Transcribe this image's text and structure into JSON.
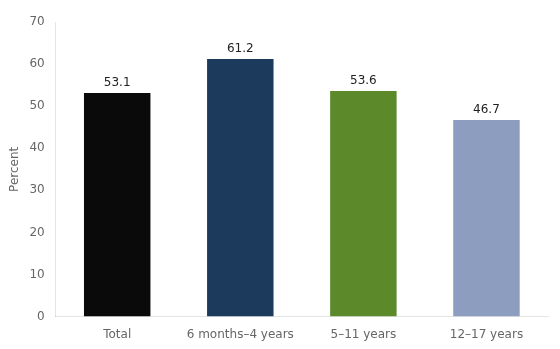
{
  "chart_data": {
    "type": "bar",
    "categories": [
      "Total",
      "6 months–4 years",
      "5–11 years",
      "12–17 years"
    ],
    "values": [
      53.1,
      61.2,
      53.6,
      46.7
    ],
    "colors": [
      "#0a0a0a",
      "#1b3a5c",
      "#5c8a2a",
      "#8c9dbf"
    ],
    "ylabel": "Percent",
    "ylim": [
      0,
      70
    ],
    "yticks": [
      0,
      10,
      20,
      30,
      40,
      50,
      60,
      70
    ],
    "grid": false,
    "data_labels": true
  }
}
